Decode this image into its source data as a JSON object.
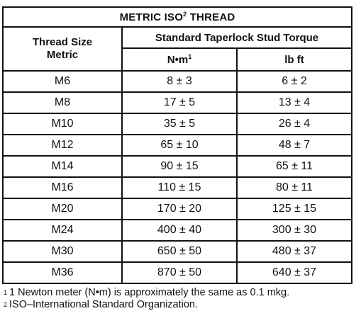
{
  "table": {
    "title_main": "METRIC ISO",
    "title_sup": "2",
    "title_tail": " THREAD",
    "thread_size_line1": "Thread Size",
    "thread_size_line2": "Metric",
    "torque_group": "Standard Taperlock Stud Torque",
    "nm_label": "N•m",
    "nm_sup": "1",
    "lbft_label": "lb ft",
    "rows": [
      {
        "size": "M6",
        "nm": "8 ± 3",
        "lbft": "6 ± 2"
      },
      {
        "size": "M8",
        "nm": "17 ± 5",
        "lbft": "13 ± 4"
      },
      {
        "size": "M10",
        "nm": "35 ± 5",
        "lbft": "26 ± 4"
      },
      {
        "size": "M12",
        "nm": "65 ± 10",
        "lbft": "48 ± 7"
      },
      {
        "size": "M14",
        "nm": "90 ± 15",
        "lbft": "65 ± 11"
      },
      {
        "size": "M16",
        "nm": "110 ± 15",
        "lbft": "80 ± 11"
      },
      {
        "size": "M20",
        "nm": "170 ± 20",
        "lbft": "125 ± 15"
      },
      {
        "size": "M24",
        "nm": "400 ± 40",
        "lbft": "300 ± 30"
      },
      {
        "size": "M30",
        "nm": "650 ± 50",
        "lbft": "480 ± 37"
      },
      {
        "size": "M36",
        "nm": "870 ± 50",
        "lbft": "640 ± 37"
      }
    ]
  },
  "footnotes": [
    {
      "mark": "1",
      "text": "1 Newton meter (N•m) is approximately the same as 0.1 mkg."
    },
    {
      "mark": "2",
      "text": "ISO–International Standard Organization."
    }
  ]
}
